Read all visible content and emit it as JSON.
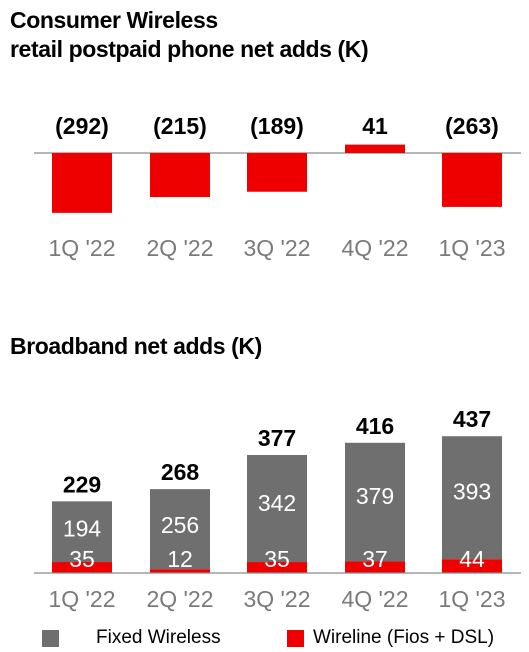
{
  "chart_data": [
    {
      "type": "bar",
      "title_lines": [
        "Consumer Wireless",
        "retail postpaid phone net adds (K)"
      ],
      "categories": [
        "1Q '22",
        "2Q '22",
        "3Q '22",
        "4Q '22",
        "1Q '23"
      ],
      "values": [
        -292,
        -215,
        -189,
        41,
        -263
      ],
      "value_labels": [
        "(292)",
        "(215)",
        "(189)",
        "41",
        "(263)"
      ],
      "color": "#ee0000"
    },
    {
      "type": "bar",
      "stacked": true,
      "title": "Broadband net adds (K)",
      "categories": [
        "1Q '22",
        "2Q '22",
        "3Q '22",
        "4Q '22",
        "1Q '23"
      ],
      "totals": [
        229,
        268,
        377,
        416,
        437
      ],
      "series": [
        {
          "name": "Wireline (Fios + DSL)",
          "values": [
            35,
            12,
            35,
            37,
            44
          ],
          "color": "#ee0000"
        },
        {
          "name": "Fixed Wireless",
          "values": [
            194,
            256,
            342,
            379,
            393
          ],
          "color": "#6f6f6f"
        }
      ],
      "legend": "bottom"
    }
  ]
}
